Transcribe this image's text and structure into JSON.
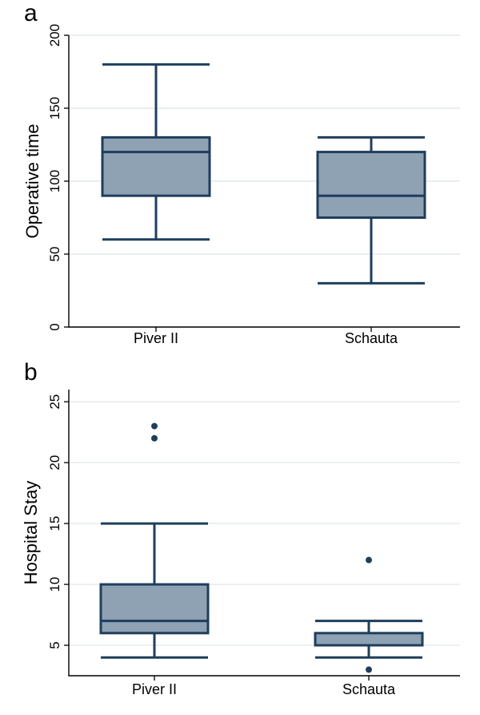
{
  "colors": {
    "box_fill": "#8ea2b4",
    "box_stroke": "#1f3e5c",
    "grid": "#e3e9ec"
  },
  "chart_data": [
    {
      "type": "box",
      "panel_label": "a",
      "ylabel": "Operative time",
      "ylim": [
        0,
        200
      ],
      "yticks": [
        0,
        50,
        100,
        150,
        200
      ],
      "grid": true,
      "categories": [
        "Piver II",
        "Schauta"
      ],
      "boxes": [
        {
          "category": "Piver II",
          "min": 60,
          "q1": 90,
          "median": 120,
          "q3": 130,
          "max": 180,
          "outliers": []
        },
        {
          "category": "Schauta",
          "min": 30,
          "q1": 75,
          "median": 90,
          "q3": 120,
          "max": 130,
          "outliers": []
        }
      ]
    },
    {
      "type": "box",
      "panel_label": "b",
      "ylabel": "Hospital Stay",
      "ylim": [
        2.5,
        26
      ],
      "yticks": [
        5,
        10,
        15,
        20,
        25
      ],
      "grid": true,
      "categories": [
        "Piver II",
        "Schauta"
      ],
      "boxes": [
        {
          "category": "Piver II",
          "min": 4,
          "q1": 6,
          "median": 7,
          "q3": 10,
          "max": 15,
          "outliers": [
            22,
            23
          ]
        },
        {
          "category": "Schauta",
          "min": 4,
          "q1": 5,
          "median": 5,
          "q3": 6,
          "max": 7,
          "outliers": [
            3,
            12
          ]
        }
      ]
    }
  ]
}
